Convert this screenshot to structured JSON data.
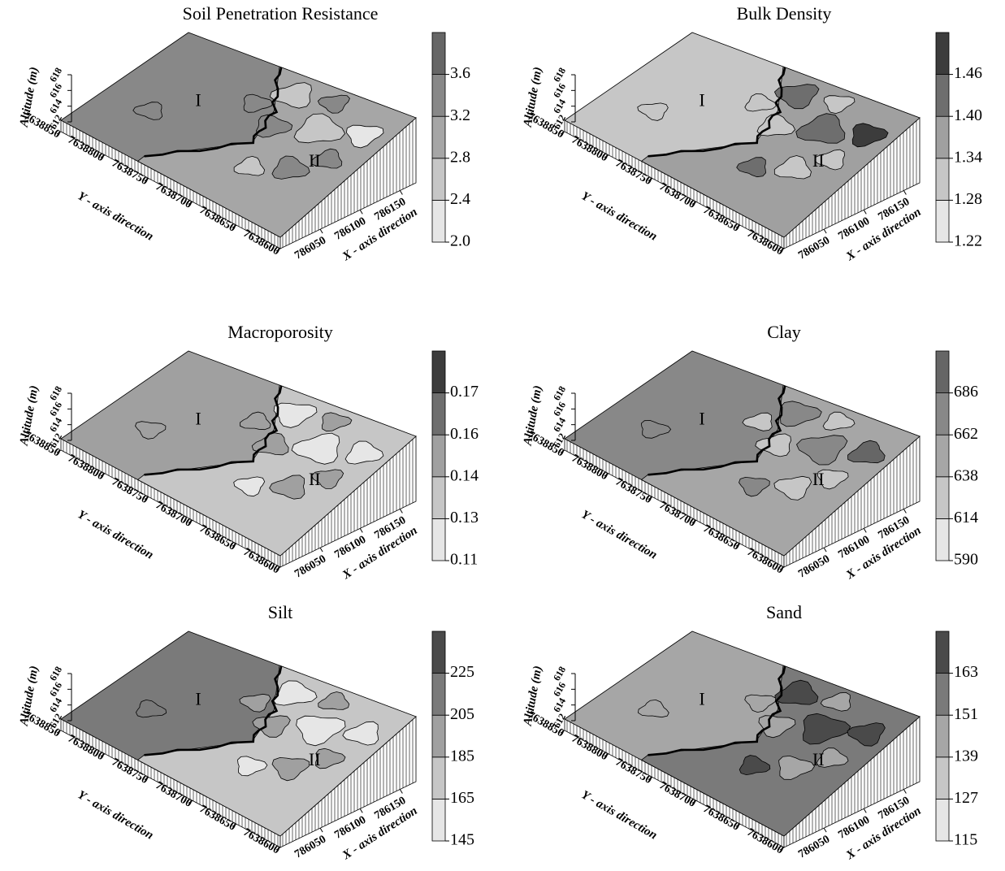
{
  "chart_data": [
    {
      "type": "contour3d",
      "title": "Soil Penetration Resistance",
      "xlabel": "X - axis direction",
      "ylabel": "Y - axis direction",
      "zlabel": "Altitude (m)",
      "xticks": [
        786050,
        786100,
        786150
      ],
      "xlim": [
        786000,
        786170
      ],
      "yticks": [
        7638850,
        7638800,
        7638750,
        7638700,
        7638650,
        7638600
      ],
      "ylim": [
        7638600,
        7638850
      ],
      "zticks": [
        612,
        614,
        616,
        618
      ],
      "zlim": [
        612,
        618
      ],
      "colorbar": {
        "ticks": [
          {
            "value": 2,
            "label": "2.0"
          },
          2.4,
          2.8,
          3.2,
          3.6
        ],
        "colors": [
          "#e6e6e6",
          "#c6c6c6",
          "#a6a6a6",
          "#888888",
          "#666666"
        ]
      },
      "annotations": [
        "I",
        "II"
      ]
    },
    {
      "type": "contour3d",
      "title": "Bulk Density",
      "xlabel": "X - axis direction",
      "ylabel": "Y - axis direction",
      "zlabel": "Altitude (m)",
      "xticks": [
        786050,
        786100,
        786150
      ],
      "xlim": [
        786000,
        786170
      ],
      "yticks": [
        7638850,
        7638800,
        7638750,
        7638700,
        7638650,
        7638600
      ],
      "ylim": [
        7638600,
        7638850
      ],
      "zticks": [
        612,
        614,
        616,
        618
      ],
      "zlim": [
        612,
        618
      ],
      "colorbar": {
        "ticks": [
          1.22,
          1.28,
          1.34,
          {
            "value": 1.4,
            "label": "1.40"
          },
          1.46
        ],
        "colors": [
          "#e6e6e6",
          "#c6c6c6",
          "#a0a0a0",
          "#6e6e6e",
          "#3c3c3c"
        ]
      },
      "annotations": [
        "I",
        "II"
      ]
    },
    {
      "type": "contour3d",
      "title": "Macroporosity",
      "xlabel": "X - axis direction",
      "ylabel": "Y - axis direction",
      "zlabel": "Altitude (m)",
      "xticks": [
        786050,
        786100,
        786150
      ],
      "xlim": [
        786000,
        786170
      ],
      "yticks": [
        7638850,
        7638800,
        7638750,
        7638700,
        7638650,
        7638600
      ],
      "ylim": [
        7638600,
        7638850
      ],
      "zticks": [
        612,
        614,
        616,
        618
      ],
      "zlim": [
        612,
        618
      ],
      "colorbar": {
        "ticks": [
          0.11,
          0.13,
          0.14,
          0.16,
          0.17
        ],
        "colors": [
          "#e6e6e6",
          "#c6c6c6",
          "#a0a0a0",
          "#6e6e6e",
          "#3c3c3c"
        ]
      },
      "annotations": [
        "I",
        "II"
      ]
    },
    {
      "type": "contour3d",
      "title": "Clay",
      "xlabel": "X - axis direction",
      "ylabel": "Y - axis direction",
      "zlabel": "Altitude (m)",
      "xticks": [
        786050,
        786100,
        786150
      ],
      "xlim": [
        786000,
        786170
      ],
      "yticks": [
        7638850,
        7638800,
        7638750,
        7638700,
        7638650,
        7638600
      ],
      "ylim": [
        7638600,
        7638850
      ],
      "zticks": [
        612,
        614,
        616,
        618
      ],
      "zlim": [
        612,
        618
      ],
      "colorbar": {
        "ticks": [
          590,
          614,
          638,
          662,
          686
        ],
        "colors": [
          "#e6e6e6",
          "#c6c6c6",
          "#a6a6a6",
          "#888888",
          "#666666"
        ]
      },
      "annotations": [
        "I",
        "II"
      ]
    },
    {
      "type": "contour3d",
      "title": "Silt",
      "xlabel": "X - axis direction",
      "ylabel": "Y - axis direction",
      "zlabel": "Altitude (m)",
      "xticks": [
        786050,
        786100,
        786150
      ],
      "xlim": [
        786000,
        786170
      ],
      "yticks": [
        7638850,
        7638800,
        7638750,
        7638700,
        7638650,
        7638600
      ],
      "ylim": [
        7638600,
        7638850
      ],
      "zticks": [
        612,
        614,
        616,
        618
      ],
      "zlim": [
        612,
        618
      ],
      "colorbar": {
        "ticks": [
          145,
          165,
          185,
          205,
          225
        ],
        "colors": [
          "#e6e6e6",
          "#c6c6c6",
          "#a0a0a0",
          "#7a7a7a",
          "#4a4a4a"
        ]
      },
      "annotations": [
        "I",
        "II"
      ]
    },
    {
      "type": "contour3d",
      "title": "Sand",
      "xlabel": "X - axis direction",
      "ylabel": "Y - axis direction",
      "zlabel": "Altitude (m)",
      "xticks": [
        786050,
        786100,
        786150
      ],
      "xlim": [
        786000,
        786170
      ],
      "yticks": [
        7638850,
        7638800,
        7638750,
        7638700,
        7638650,
        7638600
      ],
      "ylim": [
        7638600,
        7638850
      ],
      "zticks": [
        612,
        614,
        616,
        618
      ],
      "zlim": [
        612,
        618
      ],
      "colorbar": {
        "ticks": [
          115,
          127,
          139,
          151,
          163
        ],
        "colors": [
          "#e6e6e6",
          "#c6c6c6",
          "#a6a6a6",
          "#7a7a7a",
          "#4a4a4a"
        ]
      },
      "annotations": [
        "I",
        "II"
      ]
    }
  ]
}
